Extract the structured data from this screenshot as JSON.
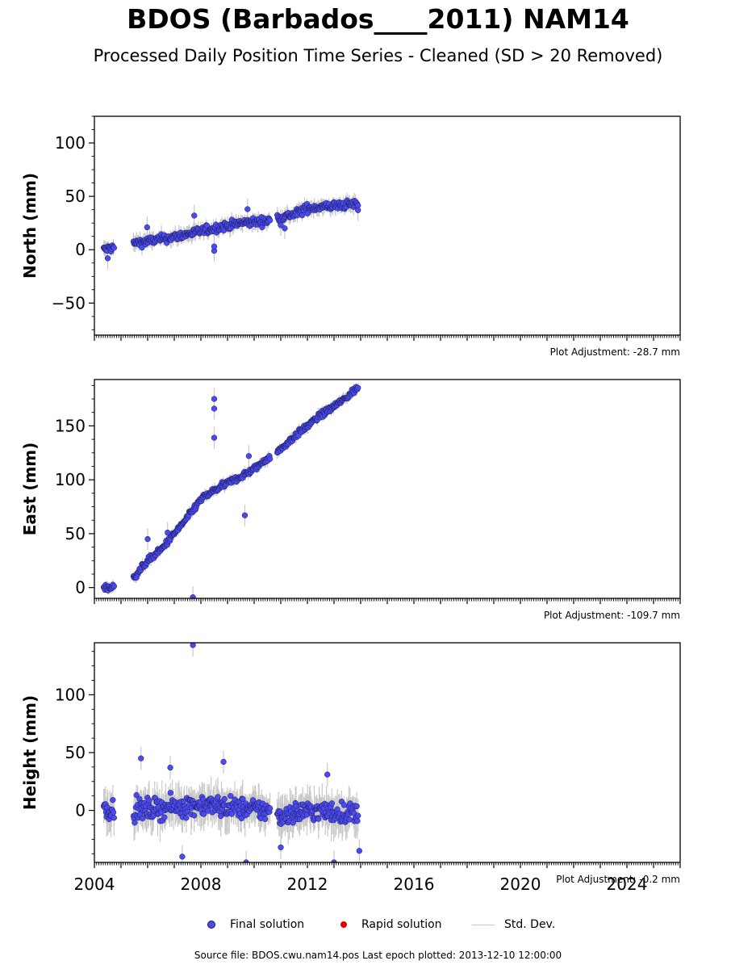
{
  "title": "BDOS (Barbados____2011) NAM14",
  "subtitle": "Processed Daily Position Time Series - Cleaned (SD > 20 Removed)",
  "source_note": "Source file: BDOS.cwu.nam14.pos  Last epoch plotted: 2013-12-10 12:00:00",
  "legend": {
    "final": "Final solution",
    "rapid": "Rapid solution",
    "std": "Std. Dev."
  },
  "colors": {
    "final": "#4a4af0",
    "final_edge": "#1a1a50",
    "rapid": "#dd0000",
    "std": "#c8c8c8"
  },
  "chart_data": [
    {
      "type": "scatter",
      "ylabel": "North (mm)",
      "adjustment_label": "Plot Adjustment: -28.7 mm",
      "xlim": [
        2004.0,
        2026.0
      ],
      "ylim": [
        -80,
        125
      ],
      "yticks": [
        -50,
        0,
        50,
        100
      ],
      "ytick_labels": [
        "−50",
        "0",
        "50",
        "100"
      ],
      "ygrid": false,
      "series": [
        {
          "name": "Final solution",
          "trend": [
            [
              2004.35,
              0
            ],
            [
              2005.5,
              6
            ],
            [
              2007.0,
              12
            ],
            [
              2008.5,
              20
            ],
            [
              2009.5,
              25
            ],
            [
              2010.5,
              27
            ],
            [
              2010.85,
              30
            ],
            [
              2011.5,
              33
            ],
            [
              2012.0,
              39
            ],
            [
              2013.9,
              43
            ]
          ],
          "scatter_sd": 3.5,
          "outliers": [
            [
              2004.5,
              -8
            ],
            [
              2005.98,
              21
            ],
            [
              2007.75,
              32
            ],
            [
              2008.5,
              -1
            ],
            [
              2008.5,
              3
            ],
            [
              2009.75,
              38
            ],
            [
              2011.15,
              20
            ],
            [
              2011.0,
              23
            ],
            [
              2013.9,
              37
            ]
          ]
        }
      ]
    },
    {
      "type": "scatter",
      "ylabel": "East (mm)",
      "adjustment_label": "Plot Adjustment: -109.7 mm",
      "xlim": [
        2004.0,
        2026.0
      ],
      "ylim": [
        -10,
        193
      ],
      "yticks": [
        0,
        50,
        100,
        150
      ],
      "ytick_labels": [
        "0",
        "50",
        "100",
        "150"
      ],
      "ygrid": false,
      "series": [
        {
          "name": "Final solution",
          "trend": [
            [
              2004.35,
              0
            ],
            [
              2004.7,
              0
            ],
            [
              2005.5,
              10
            ],
            [
              2006.0,
              25
            ],
            [
              2006.5,
              35
            ],
            [
              2007.0,
              50
            ],
            [
              2007.5,
              65
            ],
            [
              2008.0,
              82
            ],
            [
              2008.5,
              90
            ],
            [
              2009.0,
              97
            ],
            [
              2009.5,
              103
            ],
            [
              2010.0,
              110
            ],
            [
              2010.5,
              120
            ],
            [
              2010.85,
              125
            ],
            [
              2011.5,
              140
            ],
            [
              2012.0,
              150
            ],
            [
              2012.5,
              160
            ],
            [
              2013.0,
              168
            ],
            [
              2013.5,
              177
            ],
            [
              2013.9,
              186
            ]
          ],
          "scatter_sd": 2.5,
          "outliers": [
            [
              2006.0,
              45
            ],
            [
              2006.75,
              51
            ],
            [
              2007.7,
              -9
            ],
            [
              2008.5,
              175
            ],
            [
              2008.5,
              166
            ],
            [
              2008.5,
              139
            ],
            [
              2009.65,
              67
            ],
            [
              2009.8,
              122
            ]
          ]
        }
      ]
    },
    {
      "type": "scatter",
      "ylabel": "Height (mm)",
      "adjustment_label": "Plot Adjustment: -0.2 mm",
      "xlim": [
        2004.0,
        2026.0
      ],
      "ylim": [
        -45,
        145
      ],
      "yticks": [
        0,
        50,
        100
      ],
      "ytick_labels": [
        "0",
        "50",
        "100"
      ],
      "xticks": [
        2004,
        2008,
        2012,
        2016,
        2020,
        2024
      ],
      "ygrid": false,
      "series": [
        {
          "name": "Final solution",
          "trend": [
            [
              2004.35,
              2
            ],
            [
              2005.5,
              0
            ],
            [
              2008.0,
              5
            ],
            [
              2010.5,
              0
            ],
            [
              2010.85,
              -5
            ],
            [
              2012.0,
              0
            ],
            [
              2013.9,
              -3
            ]
          ],
          "scatter_sd": 8.0,
          "outliers": [
            [
              2005.75,
              45
            ],
            [
              2007.7,
              143
            ],
            [
              2008.85,
              42
            ],
            [
              2006.85,
              37
            ],
            [
              2007.3,
              -40
            ],
            [
              2009.7,
              -45
            ],
            [
              2013.0,
              -45
            ],
            [
              2011.0,
              -32
            ],
            [
              2013.95,
              -35
            ],
            [
              2012.75,
              31
            ]
          ]
        }
      ]
    }
  ]
}
